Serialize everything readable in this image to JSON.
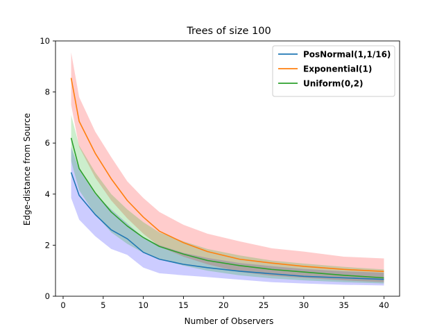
{
  "chart_data": {
    "type": "line",
    "title": "Trees of size 100",
    "xlabel": "Number of Observers",
    "ylabel": "Edge-distance from Source",
    "xlim": [
      -0.95,
      41.95
    ],
    "ylim": [
      0,
      10
    ],
    "xticks": [
      0,
      5,
      10,
      15,
      20,
      25,
      30,
      35,
      40
    ],
    "yticks": [
      0,
      2,
      4,
      6,
      8,
      10
    ],
    "grid": false,
    "legend_position": "top-right",
    "x": [
      1,
      2,
      4,
      6,
      8,
      10,
      12,
      15,
      18,
      22,
      26,
      30,
      35,
      40
    ],
    "series": [
      {
        "name": "PosNormal(1,1/16)",
        "color": "#1f77b4",
        "band_color": "#0000ff",
        "values": [
          4.85,
          3.95,
          3.2,
          2.6,
          2.25,
          1.72,
          1.45,
          1.25,
          1.12,
          0.98,
          0.88,
          0.78,
          0.72,
          0.66
        ],
        "lower": [
          3.85,
          3.0,
          2.35,
          1.85,
          1.62,
          1.12,
          0.9,
          0.82,
          0.75,
          0.65,
          0.55,
          0.5,
          0.45,
          0.42
        ],
        "upper": [
          5.85,
          4.95,
          4.0,
          3.4,
          2.85,
          2.3,
          2.0,
          1.7,
          1.5,
          1.3,
          1.18,
          1.07,
          0.98,
          0.92
        ]
      },
      {
        "name": "Exponential(1)",
        "color": "#ff7f0e",
        "band_color": "#ff0000",
        "values": [
          8.55,
          6.85,
          5.6,
          4.6,
          3.75,
          3.1,
          2.55,
          2.1,
          1.75,
          1.45,
          1.3,
          1.17,
          1.05,
          0.97
        ],
        "lower": [
          7.5,
          5.85,
          4.65,
          3.75,
          3.05,
          2.45,
          1.95,
          1.55,
          1.25,
          0.95,
          0.8,
          0.72,
          0.62,
          0.55
        ],
        "upper": [
          9.55,
          7.8,
          6.45,
          5.45,
          4.5,
          3.85,
          3.3,
          2.8,
          2.45,
          2.15,
          1.88,
          1.75,
          1.55,
          1.48
        ]
      },
      {
        "name": "Uniform(0,2)",
        "color": "#2ca02c",
        "band_color": "#00aa00",
        "values": [
          6.2,
          5.0,
          4.05,
          3.3,
          2.75,
          2.3,
          1.95,
          1.65,
          1.4,
          1.2,
          1.05,
          0.95,
          0.82,
          0.72
        ],
        "lower": [
          5.3,
          4.15,
          3.2,
          2.5,
          2.05,
          1.7,
          1.45,
          1.2,
          1.0,
          0.82,
          0.7,
          0.62,
          0.55,
          0.5
        ],
        "upper": [
          7.1,
          5.9,
          4.85,
          4.0,
          3.4,
          2.9,
          2.5,
          2.15,
          1.85,
          1.6,
          1.4,
          1.28,
          1.15,
          1.05
        ]
      }
    ]
  }
}
